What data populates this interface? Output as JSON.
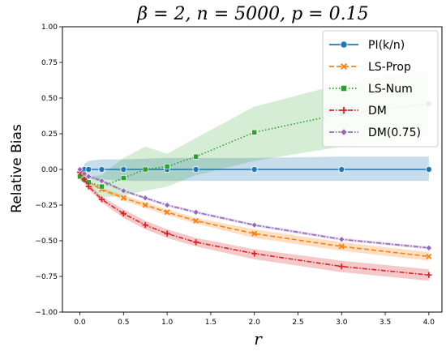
{
  "chart_data": {
    "type": "line",
    "title": "β = 2, n = 5000, p = 0.15",
    "xlabel": "r",
    "ylabel": "Relative Bias",
    "xlim": [
      -0.2,
      4.15
    ],
    "ylim": [
      -1.0,
      1.0
    ],
    "xticks": [
      0.0,
      0.5,
      1.0,
      1.5,
      2.0,
      2.5,
      3.0,
      3.5,
      4.0
    ],
    "xtick_labels": [
      "0.0",
      "0.5",
      "1.0",
      "1.5",
      "2.0",
      "2.5",
      "3.0",
      "3.5",
      "4.0"
    ],
    "yticks": [
      -1.0,
      -0.75,
      -0.5,
      -0.25,
      0.0,
      0.25,
      0.5,
      0.75,
      1.0
    ],
    "ytick_labels": [
      "−1.00",
      "−0.75",
      "−0.50",
      "−0.25",
      "0.00",
      "0.25",
      "0.50",
      "0.75",
      "1.00"
    ],
    "grid": false,
    "legend_position": "top-right",
    "series": [
      {
        "name": "PI(k/n)",
        "color": "#1f77b4",
        "marker": "circle",
        "dash": "solid",
        "x": [
          0.05,
          0.1,
          0.25,
          0.5,
          1.0,
          1.33,
          2.0,
          3.0,
          4.0
        ],
        "y": [
          0.0,
          0.0,
          0.0,
          0.0,
          0.0,
          0.0,
          0.0,
          0.0,
          0.0
        ],
        "lower": [
          -0.04,
          -0.06,
          -0.07,
          -0.08,
          -0.08,
          -0.08,
          -0.08,
          -0.08,
          -0.08
        ],
        "upper": [
          0.04,
          0.06,
          0.07,
          0.07,
          0.08,
          0.08,
          0.08,
          0.09,
          0.09
        ]
      },
      {
        "name": "LS-Prop",
        "color": "#ff7f0e",
        "marker": "x",
        "dash": "dashed",
        "x": [
          0.0,
          0.05,
          0.1,
          0.25,
          0.5,
          0.75,
          1.0,
          1.33,
          2.0,
          3.0,
          4.0
        ],
        "y": [
          -0.01,
          -0.05,
          -0.09,
          -0.14,
          -0.2,
          -0.25,
          -0.3,
          -0.36,
          -0.45,
          -0.54,
          -0.61
        ],
        "lower": [
          -0.02,
          -0.06,
          -0.1,
          -0.15,
          -0.22,
          -0.27,
          -0.32,
          -0.38,
          -0.48,
          -0.57,
          -0.64
        ],
        "upper": [
          0.0,
          -0.04,
          -0.08,
          -0.13,
          -0.18,
          -0.23,
          -0.28,
          -0.34,
          -0.42,
          -0.51,
          -0.58
        ]
      },
      {
        "name": "LS-Num",
        "color": "#2ca02c",
        "marker": "square",
        "dash": "dotted",
        "x": [
          0.0,
          0.05,
          0.1,
          0.25,
          0.5,
          0.75,
          1.0,
          1.33,
          2.0,
          3.0,
          4.0
        ],
        "y": [
          -0.05,
          -0.07,
          -0.09,
          -0.12,
          -0.06,
          0.0,
          0.02,
          0.09,
          0.26,
          0.39,
          0.46
        ],
        "lower": [
          -0.08,
          -0.1,
          -0.13,
          -0.2,
          -0.18,
          -0.15,
          -0.12,
          -0.04,
          0.06,
          0.16,
          0.23
        ],
        "upper": [
          -0.02,
          -0.03,
          -0.05,
          -0.04,
          0.08,
          0.16,
          0.11,
          0.22,
          0.44,
          0.6,
          0.7
        ]
      },
      {
        "name": "DM",
        "color": "#d62728",
        "marker": "plus",
        "dash": "dashdot",
        "x": [
          0.0,
          0.05,
          0.1,
          0.25,
          0.5,
          0.75,
          1.0,
          1.33,
          2.0,
          3.0,
          4.0
        ],
        "y": [
          -0.02,
          -0.07,
          -0.12,
          -0.21,
          -0.31,
          -0.39,
          -0.45,
          -0.51,
          -0.59,
          -0.68,
          -0.74
        ],
        "lower": [
          -0.03,
          -0.09,
          -0.14,
          -0.23,
          -0.34,
          -0.42,
          -0.48,
          -0.54,
          -0.63,
          -0.72,
          -0.78
        ],
        "upper": [
          -0.01,
          -0.05,
          -0.1,
          -0.19,
          -0.28,
          -0.36,
          -0.42,
          -0.48,
          -0.56,
          -0.64,
          -0.7
        ]
      },
      {
        "name": "DM(0.75)",
        "color": "#9467bd",
        "marker": "diamond",
        "dash": "dashdot",
        "x": [
          0.0,
          0.05,
          0.1,
          0.25,
          0.5,
          0.75,
          1.0,
          1.33,
          2.0,
          3.0,
          4.0
        ],
        "y": [
          0.0,
          -0.03,
          -0.05,
          -0.08,
          -0.15,
          -0.2,
          -0.25,
          -0.3,
          -0.39,
          -0.49,
          -0.55
        ],
        "lower": [
          -0.01,
          -0.04,
          -0.06,
          -0.09,
          -0.16,
          -0.21,
          -0.26,
          -0.31,
          -0.4,
          -0.5,
          -0.56
        ],
        "upper": [
          0.01,
          -0.02,
          -0.04,
          -0.07,
          -0.14,
          -0.19,
          -0.24,
          -0.29,
          -0.38,
          -0.48,
          -0.54
        ]
      }
    ]
  }
}
